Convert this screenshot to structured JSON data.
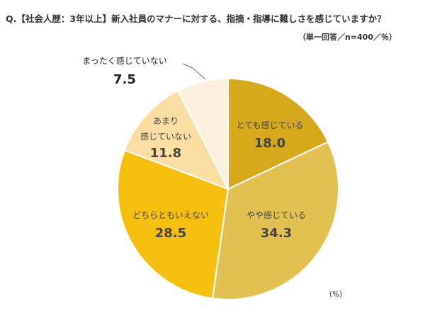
{
  "title": "Q.【社会人歴：3年以上】新入社員のマナーに対する、指摘・指導に難しさを感じていますか？",
  "note": "（単一回答／n=400／％）",
  "unit": "(%)",
  "chart_data": {
    "type": "pie",
    "title": "Q.【社会人歴：3年以上】新入社員のマナーに対する、指摘・指導に難しさを感じていますか？",
    "unit": "%",
    "slices": [
      {
        "label": "とても感じている",
        "value": 18.0,
        "value_text": "18.0",
        "color": "#D6A91C"
      },
      {
        "label": "やや感じている",
        "value": 34.3,
        "value_text": "34.3",
        "color": "#E2C152"
      },
      {
        "label": "どちらともいえない",
        "value": 28.5,
        "value_text": "28.5",
        "color": "#F6BE0D"
      },
      {
        "label": "あまり感じていない",
        "label_lines": [
          "あまり",
          "感じていない"
        ],
        "value": 11.8,
        "value_text": "11.8",
        "color": "#FBDEA4"
      },
      {
        "label": "まったく感じていない",
        "value": 7.5,
        "value_text": "7.5",
        "color": "#FDF0DF"
      }
    ]
  }
}
